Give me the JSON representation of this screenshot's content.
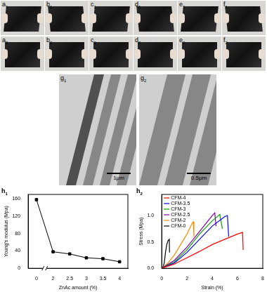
{
  "panels": {
    "photos": [
      "a1",
      "b1",
      "c1",
      "d1",
      "e1",
      "f1",
      "a2",
      "b2",
      "c2",
      "d2",
      "e2",
      "f2"
    ],
    "tem": [
      {
        "label": "g1",
        "scale_bar": "1μm"
      },
      {
        "label": "g2",
        "scale_bar": "0.5μm"
      }
    ]
  },
  "chart_data": [
    {
      "label": "h1",
      "type": "line",
      "x_label": "ZnAc amount (%)",
      "y_label": "Young's modulus (Mpa)",
      "categories": [
        "0",
        "2",
        "2.5",
        "3",
        "3.5",
        "4"
      ],
      "values": [
        158,
        38,
        33,
        24,
        22,
        15
      ],
      "color": "#000000",
      "marker": "square",
      "ylim": [
        0,
        170
      ],
      "yticks": [
        0,
        40,
        80,
        120,
        160
      ]
    },
    {
      "label": "h2",
      "type": "line",
      "x_label": "Strain (%)",
      "y_label": "Stress (Mpa)",
      "xlim": [
        0,
        8
      ],
      "xticks": [
        0,
        2,
        4,
        6,
        8
      ],
      "ylim": [
        0,
        1.4
      ],
      "yticks": [
        {
          "value": 0,
          "label": "0.0"
        },
        {
          "value": 0.5,
          "label": "0.5"
        },
        {
          "value": 1,
          "label": "1.0"
        }
      ],
      "legend": "upper left",
      "series": [
        {
          "name": "CFM-4",
          "color": "#ff0000",
          "x": [
            0,
            1,
            2,
            3,
            4,
            5,
            6,
            6.4,
            6.45
          ],
          "values": [
            0,
            0.08,
            0.2,
            0.32,
            0.45,
            0.55,
            0.65,
            0.68,
            0.35
          ]
        },
        {
          "name": "CFM-3.5",
          "color": "#0000ff",
          "x": [
            0,
            1,
            2,
            3,
            4,
            5,
            5.2,
            5.3
          ],
          "values": [
            0,
            0.1,
            0.3,
            0.55,
            0.8,
            0.98,
            1.0,
            0.6
          ]
        },
        {
          "name": "CFM-3",
          "color": "#00a000",
          "x": [
            0,
            1,
            2,
            3,
            4,
            4.6,
            4.8
          ],
          "values": [
            0,
            0.12,
            0.35,
            0.65,
            0.9,
            1.02,
            0.75
          ]
        },
        {
          "name": "CFM-2.5",
          "color": "#8000a0",
          "x": [
            0,
            1,
            2,
            3,
            4,
            4.2,
            4.3
          ],
          "values": [
            0,
            0.15,
            0.4,
            0.7,
            1.0,
            1.05,
            0.8
          ]
        },
        {
          "name": "CFM-2",
          "color": "#ff8c00",
          "x": [
            0,
            0.5,
            1,
            1.5,
            2,
            2.4,
            2.5,
            2.55
          ],
          "values": [
            0,
            0.1,
            0.25,
            0.45,
            0.65,
            0.85,
            0.88,
            0.6
          ]
        },
        {
          "name": "CFM-0",
          "color": "#000000",
          "x": [
            0,
            0.1,
            0.2,
            0.3,
            0.4,
            0.5,
            0.6,
            0.62
          ],
          "values": [
            0,
            0.02,
            0.1,
            0.3,
            0.45,
            0.52,
            0.55,
            0.3
          ]
        }
      ]
    }
  ]
}
